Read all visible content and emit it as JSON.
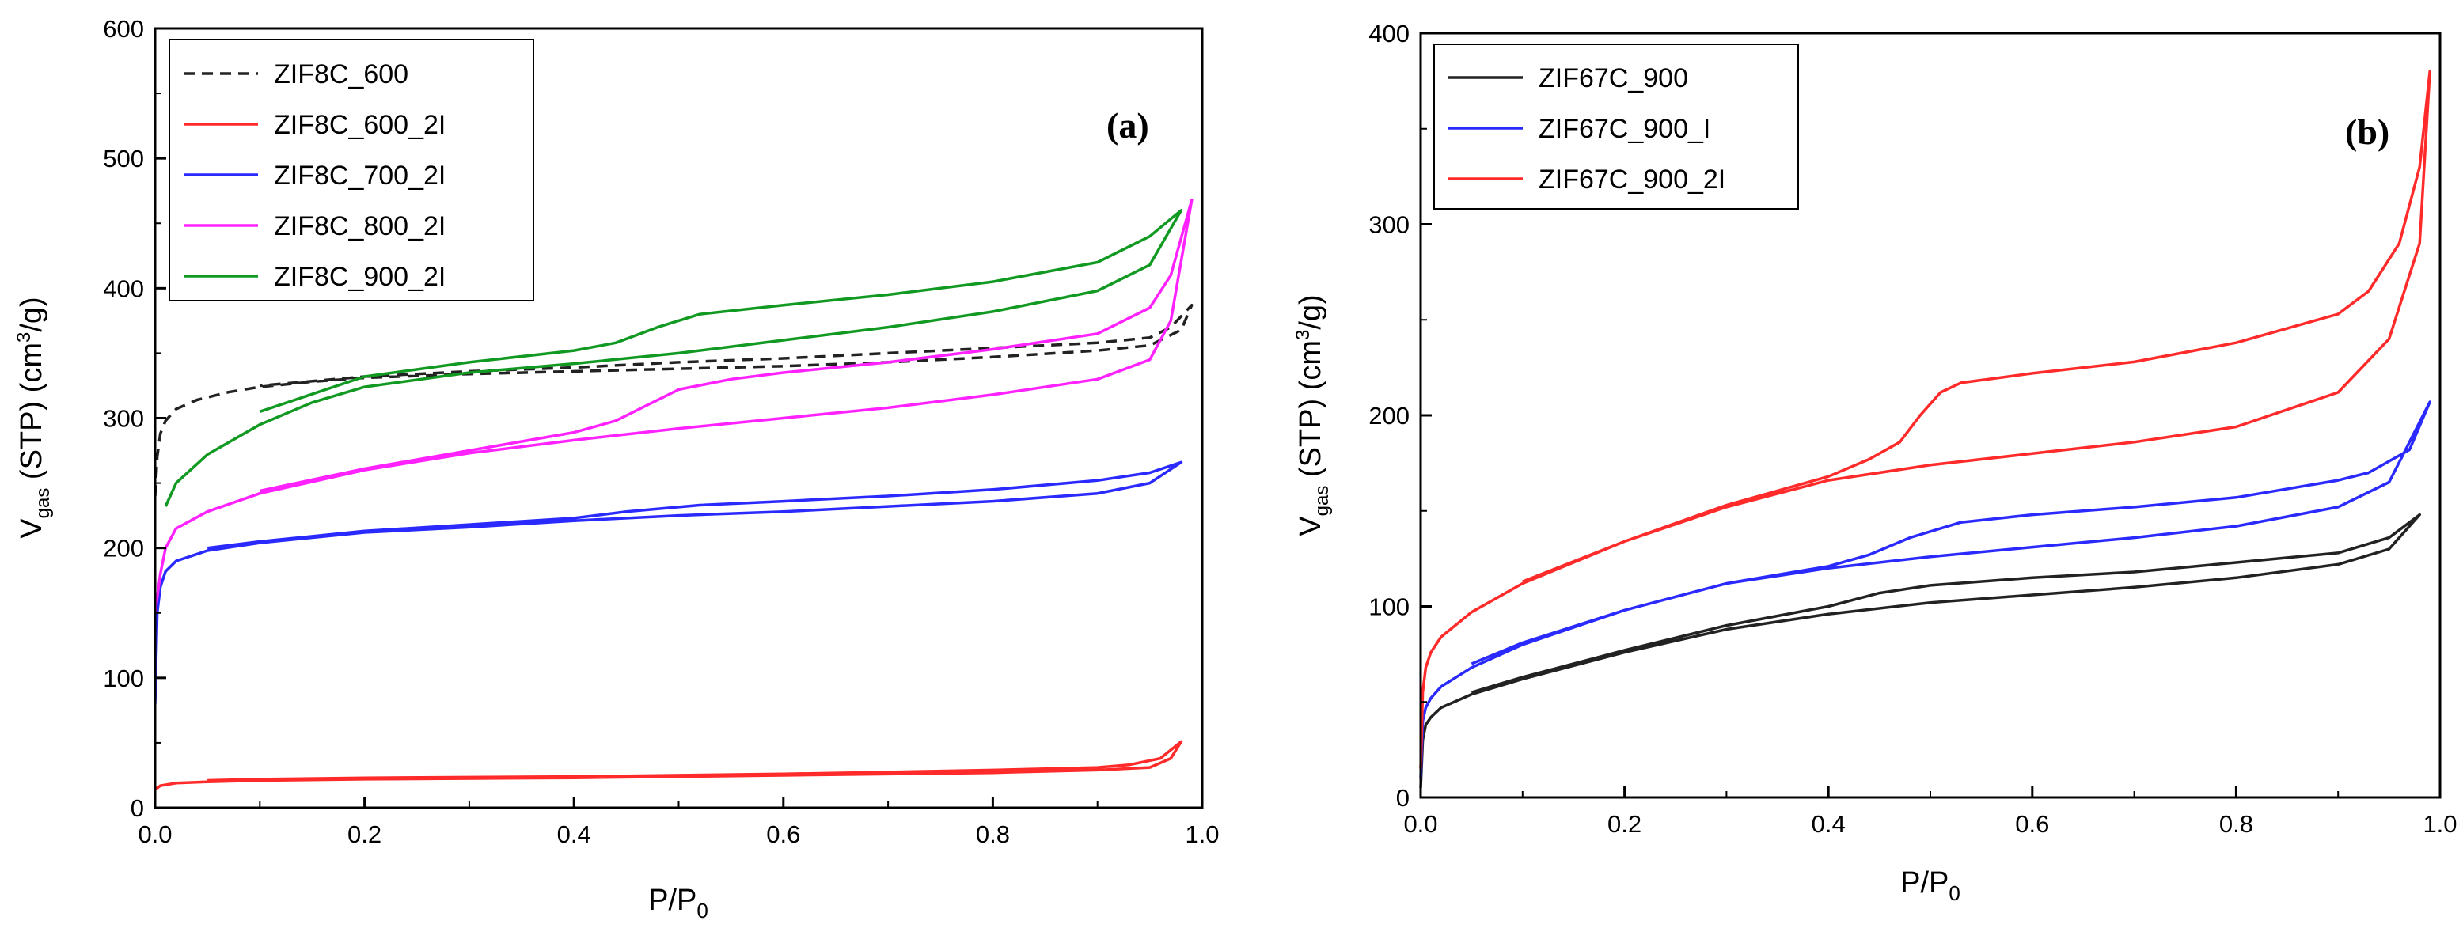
{
  "chart_data": [
    {
      "type": "line",
      "panel_label": "a",
      "xlabel": "P/P",
      "xlabel_sub": "0",
      "ylabel_parts": [
        "V",
        "gas",
        " (STP) (cm",
        "3",
        "/g)"
      ],
      "xlim": [
        0,
        1.0
      ],
      "ylim": [
        0,
        600
      ],
      "xticks": [
        0.0,
        0.2,
        0.4,
        0.6,
        0.8,
        1.0
      ],
      "xtick_labels": [
        "0.0",
        "0.2",
        "0.4",
        "0.6",
        "0.8",
        "1.0"
      ],
      "yticks": [
        0,
        100,
        200,
        300,
        400,
        500,
        600
      ],
      "ytick_labels": [
        "0",
        "100",
        "200",
        "300",
        "400",
        "500",
        "600"
      ],
      "legend_position": "top-left",
      "series": [
        {
          "name": "ZIF8C_600",
          "color": "#222222",
          "dash": "dashed",
          "adsorption": [
            [
              0.0,
              240
            ],
            [
              0.002,
              270
            ],
            [
              0.005,
              288
            ],
            [
              0.01,
              298
            ],
            [
              0.02,
              307
            ],
            [
              0.04,
              314
            ],
            [
              0.07,
              320
            ],
            [
              0.1,
              324
            ],
            [
              0.15,
              328
            ],
            [
              0.2,
              331
            ],
            [
              0.3,
              334
            ],
            [
              0.4,
              336
            ],
            [
              0.5,
              338
            ],
            [
              0.6,
              340
            ],
            [
              0.7,
              343
            ],
            [
              0.8,
              347
            ],
            [
              0.9,
              352
            ],
            [
              0.95,
              356
            ],
            [
              0.98,
              368
            ],
            [
              0.99,
              387
            ]
          ],
          "desorption": [
            [
              0.99,
              387
            ],
            [
              0.97,
              370
            ],
            [
              0.95,
              362
            ],
            [
              0.9,
              358
            ],
            [
              0.8,
              354
            ],
            [
              0.7,
              350
            ],
            [
              0.6,
              346
            ],
            [
              0.5,
              343
            ],
            [
              0.45,
              341
            ],
            [
              0.4,
              339
            ],
            [
              0.3,
              336
            ],
            [
              0.2,
              332
            ],
            [
              0.1,
              325
            ]
          ]
        },
        {
          "name": "ZIF8C_600_2I",
          "color": "#ff2a2a",
          "dash": "solid",
          "adsorption": [
            [
              0.0,
              14
            ],
            [
              0.005,
              17
            ],
            [
              0.02,
              19
            ],
            [
              0.05,
              20
            ],
            [
              0.1,
              21
            ],
            [
              0.2,
              22
            ],
            [
              0.4,
              23
            ],
            [
              0.6,
              25
            ],
            [
              0.8,
              27
            ],
            [
              0.9,
              29
            ],
            [
              0.95,
              31
            ],
            [
              0.97,
              38
            ],
            [
              0.98,
              51
            ]
          ],
          "desorption": [
            [
              0.98,
              51
            ],
            [
              0.96,
              38
            ],
            [
              0.93,
              33
            ],
            [
              0.9,
              31
            ],
            [
              0.8,
              29
            ],
            [
              0.6,
              26
            ],
            [
              0.4,
              24
            ],
            [
              0.2,
              23
            ],
            [
              0.1,
              22
            ],
            [
              0.05,
              21
            ]
          ]
        },
        {
          "name": "ZIF8C_700_2I",
          "color": "#2a2aff",
          "dash": "solid",
          "adsorption": [
            [
              0.0,
              80
            ],
            [
              0.002,
              150
            ],
            [
              0.005,
              170
            ],
            [
              0.01,
              182
            ],
            [
              0.02,
              190
            ],
            [
              0.05,
              198
            ],
            [
              0.1,
              204
            ],
            [
              0.2,
              212
            ],
            [
              0.3,
              216
            ],
            [
              0.4,
              221
            ],
            [
              0.5,
              225
            ],
            [
              0.6,
              228
            ],
            [
              0.7,
              232
            ],
            [
              0.8,
              236
            ],
            [
              0.9,
              242
            ],
            [
              0.95,
              250
            ],
            [
              0.98,
              266
            ]
          ],
          "desorption": [
            [
              0.98,
              266
            ],
            [
              0.95,
              258
            ],
            [
              0.9,
              252
            ],
            [
              0.8,
              245
            ],
            [
              0.7,
              240
            ],
            [
              0.6,
              236
            ],
            [
              0.52,
              233
            ],
            [
              0.45,
              228
            ],
            [
              0.4,
              223
            ],
            [
              0.3,
              218
            ],
            [
              0.2,
              213
            ],
            [
              0.1,
              205
            ],
            [
              0.05,
              200
            ]
          ]
        },
        {
          "name": "ZIF8C_800_2I",
          "color": "#ff22ff",
          "dash": "solid",
          "adsorption": [
            [
              0.0,
              150
            ],
            [
              0.005,
              180
            ],
            [
              0.01,
              200
            ],
            [
              0.02,
              215
            ],
            [
              0.05,
              228
            ],
            [
              0.1,
              242
            ],
            [
              0.2,
              260
            ],
            [
              0.3,
              273
            ],
            [
              0.4,
              283
            ],
            [
              0.5,
              292
            ],
            [
              0.6,
              300
            ],
            [
              0.7,
              308
            ],
            [
              0.8,
              318
            ],
            [
              0.9,
              330
            ],
            [
              0.95,
              345
            ],
            [
              0.97,
              375
            ],
            [
              0.99,
              468
            ]
          ],
          "desorption": [
            [
              0.99,
              468
            ],
            [
              0.97,
              410
            ],
            [
              0.95,
              385
            ],
            [
              0.9,
              365
            ],
            [
              0.8,
              353
            ],
            [
              0.7,
              343
            ],
            [
              0.6,
              335
            ],
            [
              0.55,
              330
            ],
            [
              0.5,
              322
            ],
            [
              0.47,
              310
            ],
            [
              0.44,
              298
            ],
            [
              0.4,
              289
            ],
            [
              0.3,
              275
            ],
            [
              0.2,
              261
            ],
            [
              0.1,
              244
            ]
          ]
        },
        {
          "name": "ZIF8C_900_2I",
          "color": "#119922",
          "dash": "solid",
          "adsorption": [
            [
              0.01,
              232
            ],
            [
              0.02,
              250
            ],
            [
              0.05,
              272
            ],
            [
              0.1,
              295
            ],
            [
              0.15,
              312
            ],
            [
              0.2,
              324
            ],
            [
              0.3,
              335
            ],
            [
              0.4,
              342
            ],
            [
              0.5,
              350
            ],
            [
              0.6,
              360
            ],
            [
              0.7,
              370
            ],
            [
              0.8,
              382
            ],
            [
              0.9,
              398
            ],
            [
              0.95,
              418
            ],
            [
              0.98,
              460
            ]
          ],
          "desorption": [
            [
              0.98,
              460
            ],
            [
              0.95,
              440
            ],
            [
              0.9,
              420
            ],
            [
              0.8,
              405
            ],
            [
              0.7,
              395
            ],
            [
              0.6,
              387
            ],
            [
              0.52,
              380
            ],
            [
              0.48,
              370
            ],
            [
              0.44,
              358
            ],
            [
              0.4,
              352
            ],
            [
              0.3,
              343
            ],
            [
              0.2,
              332
            ],
            [
              0.1,
              305
            ]
          ]
        }
      ]
    },
    {
      "type": "line",
      "panel_label": "b",
      "xlabel": "P/P",
      "xlabel_sub": "0",
      "ylabel_parts": [
        "V",
        "gas",
        " (STP) (cm",
        "3",
        "/g)"
      ],
      "xlim": [
        0,
        1.0
      ],
      "ylim": [
        0,
        400
      ],
      "xticks": [
        0.0,
        0.2,
        0.4,
        0.6,
        0.8,
        1.0
      ],
      "xtick_labels": [
        "0.0",
        "0.2",
        "0.4",
        "0.6",
        "0.8",
        "1.0"
      ],
      "yticks": [
        0,
        100,
        200,
        300,
        400
      ],
      "ytick_labels": [
        "0",
        "100",
        "200",
        "300",
        "400"
      ],
      "legend_position": "top-left",
      "series": [
        {
          "name": "ZIF67C_900",
          "color": "#222222",
          "dash": "solid",
          "adsorption": [
            [
              0.0,
              5
            ],
            [
              0.002,
              30
            ],
            [
              0.005,
              38
            ],
            [
              0.01,
              42
            ],
            [
              0.02,
              47
            ],
            [
              0.05,
              54
            ],
            [
              0.1,
              62
            ],
            [
              0.2,
              76
            ],
            [
              0.3,
              88
            ],
            [
              0.4,
              96
            ],
            [
              0.5,
              102
            ],
            [
              0.6,
              106
            ],
            [
              0.7,
              110
            ],
            [
              0.8,
              115
            ],
            [
              0.9,
              122
            ],
            [
              0.95,
              130
            ],
            [
              0.98,
              148
            ]
          ],
          "desorption": [
            [
              0.98,
              148
            ],
            [
              0.95,
              136
            ],
            [
              0.9,
              128
            ],
            [
              0.8,
              123
            ],
            [
              0.7,
              118
            ],
            [
              0.6,
              115
            ],
            [
              0.5,
              111
            ],
            [
              0.45,
              107
            ],
            [
              0.4,
              100
            ],
            [
              0.3,
              90
            ],
            [
              0.2,
              77
            ],
            [
              0.1,
              63
            ],
            [
              0.05,
              55
            ]
          ]
        },
        {
          "name": "ZIF67C_900_I",
          "color": "#2a2aff",
          "dash": "solid",
          "adsorption": [
            [
              0.0,
              10
            ],
            [
              0.002,
              40
            ],
            [
              0.005,
              47
            ],
            [
              0.01,
              52
            ],
            [
              0.02,
              58
            ],
            [
              0.05,
              68
            ],
            [
              0.1,
              80
            ],
            [
              0.2,
              98
            ],
            [
              0.3,
              112
            ],
            [
              0.4,
              120
            ],
            [
              0.5,
              126
            ],
            [
              0.6,
              131
            ],
            [
              0.7,
              136
            ],
            [
              0.8,
              142
            ],
            [
              0.9,
              152
            ],
            [
              0.95,
              165
            ],
            [
              0.99,
              207
            ]
          ],
          "desorption": [
            [
              0.99,
              207
            ],
            [
              0.97,
              182
            ],
            [
              0.93,
              170
            ],
            [
              0.9,
              166
            ],
            [
              0.8,
              157
            ],
            [
              0.7,
              152
            ],
            [
              0.6,
              148
            ],
            [
              0.53,
              144
            ],
            [
              0.48,
              136
            ],
            [
              0.44,
              127
            ],
            [
              0.4,
              121
            ],
            [
              0.3,
              112
            ],
            [
              0.2,
              98
            ],
            [
              0.1,
              81
            ],
            [
              0.05,
              70
            ]
          ]
        },
        {
          "name": "ZIF67C_900_2I",
          "color": "#ff2a2a",
          "dash": "solid",
          "adsorption": [
            [
              0.0,
              15
            ],
            [
              0.002,
              55
            ],
            [
              0.005,
              68
            ],
            [
              0.01,
              76
            ],
            [
              0.02,
              84
            ],
            [
              0.05,
              97
            ],
            [
              0.1,
              112
            ],
            [
              0.2,
              134
            ],
            [
              0.3,
              152
            ],
            [
              0.4,
              166
            ],
            [
              0.5,
              174
            ],
            [
              0.6,
              180
            ],
            [
              0.7,
              186
            ],
            [
              0.8,
              194
            ],
            [
              0.9,
              212
            ],
            [
              0.95,
              240
            ],
            [
              0.98,
              290
            ],
            [
              0.99,
              380
            ]
          ],
          "desorption": [
            [
              0.99,
              380
            ],
            [
              0.98,
              330
            ],
            [
              0.96,
              290
            ],
            [
              0.93,
              265
            ],
            [
              0.9,
              253
            ],
            [
              0.8,
              238
            ],
            [
              0.7,
              228
            ],
            [
              0.6,
              222
            ],
            [
              0.53,
              217
            ],
            [
              0.51,
              212
            ],
            [
              0.49,
              200
            ],
            [
              0.47,
              186
            ],
            [
              0.44,
              177
            ],
            [
              0.4,
              168
            ],
            [
              0.3,
              153
            ],
            [
              0.2,
              134
            ],
            [
              0.1,
              113
            ]
          ]
        }
      ]
    }
  ]
}
